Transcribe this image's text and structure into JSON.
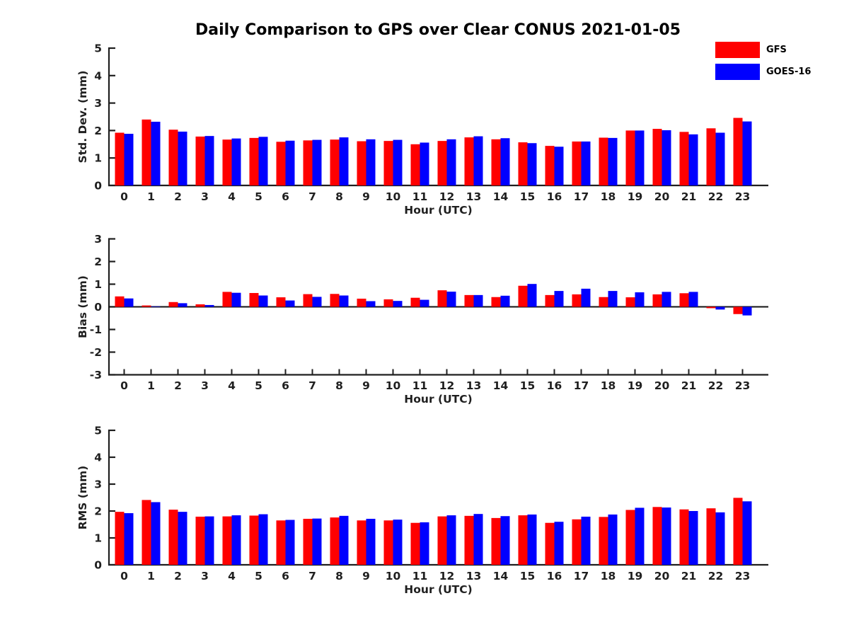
{
  "title": "Daily Comparison to GPS over Clear CONUS 2021-01-05",
  "legend": {
    "items": [
      {
        "label": "GFS",
        "color": "#ff0000"
      },
      {
        "label": "GOES-16",
        "color": "#0000ff"
      }
    ]
  },
  "colors": {
    "gfs": "#ff0000",
    "goes16": "#0000ff",
    "axis": "#1f1f1f",
    "background": "#ffffff"
  },
  "chart_data": [
    {
      "type": "bar",
      "title": "",
      "xlabel": "Hour (UTC)",
      "ylabel": "Std. Dev. (mm)",
      "ylim": [
        0,
        5
      ],
      "yticks": [
        0,
        1,
        2,
        3,
        4,
        5
      ],
      "grid": false,
      "legend_position": "top-right",
      "categories": [
        "0",
        "1",
        "2",
        "3",
        "4",
        "5",
        "6",
        "7",
        "8",
        "9",
        "10",
        "11",
        "12",
        "13",
        "14",
        "15",
        "16",
        "17",
        "18",
        "19",
        "20",
        "21",
        "22",
        "23"
      ],
      "series": [
        {
          "name": "GFS",
          "color": "#ff0000",
          "values": [
            1.92,
            2.4,
            2.03,
            1.78,
            1.67,
            1.73,
            1.59,
            1.64,
            1.67,
            1.61,
            1.62,
            1.5,
            1.62,
            1.75,
            1.68,
            1.57,
            1.44,
            1.6,
            1.74,
            2.0,
            2.06,
            1.95,
            2.08,
            2.46
          ]
        },
        {
          "name": "GOES-16",
          "color": "#0000ff",
          "values": [
            1.88,
            2.32,
            1.96,
            1.8,
            1.71,
            1.77,
            1.63,
            1.66,
            1.75,
            1.68,
            1.66,
            1.56,
            1.68,
            1.79,
            1.72,
            1.54,
            1.41,
            1.6,
            1.73,
            2.0,
            2.01,
            1.86,
            1.92,
            2.33
          ]
        }
      ]
    },
    {
      "type": "bar",
      "title": "",
      "xlabel": "Hour (UTC)",
      "ylabel": "Bias (mm)",
      "ylim": [
        -3,
        3
      ],
      "yticks": [
        -3,
        -2,
        -1,
        0,
        1,
        2,
        3
      ],
      "grid": false,
      "zero_line": true,
      "categories": [
        "0",
        "1",
        "2",
        "3",
        "4",
        "5",
        "6",
        "7",
        "8",
        "9",
        "10",
        "11",
        "12",
        "13",
        "14",
        "15",
        "16",
        "17",
        "18",
        "19",
        "20",
        "21",
        "22",
        "23"
      ],
      "series": [
        {
          "name": "GFS",
          "color": "#ff0000",
          "values": [
            0.46,
            0.06,
            0.21,
            0.11,
            0.66,
            0.61,
            0.42,
            0.56,
            0.57,
            0.36,
            0.33,
            0.4,
            0.73,
            0.52,
            0.43,
            0.93,
            0.52,
            0.55,
            0.43,
            0.42,
            0.55,
            0.6,
            -0.06,
            -0.32
          ]
        },
        {
          "name": "GOES-16",
          "color": "#0000ff",
          "values": [
            0.37,
            0.02,
            0.16,
            0.08,
            0.62,
            0.5,
            0.28,
            0.44,
            0.5,
            0.25,
            0.26,
            0.31,
            0.67,
            0.52,
            0.49,
            1.01,
            0.7,
            0.8,
            0.7,
            0.64,
            0.66,
            0.66,
            -0.12,
            -0.38
          ]
        }
      ]
    },
    {
      "type": "bar",
      "title": "",
      "xlabel": "Hour (UTC)",
      "ylabel": "RMS (mm)",
      "ylim": [
        0,
        5
      ],
      "yticks": [
        0,
        1,
        2,
        3,
        4,
        5
      ],
      "grid": false,
      "categories": [
        "0",
        "1",
        "2",
        "3",
        "4",
        "5",
        "6",
        "7",
        "8",
        "9",
        "10",
        "11",
        "12",
        "13",
        "14",
        "15",
        "16",
        "17",
        "18",
        "19",
        "20",
        "21",
        "22",
        "23"
      ],
      "series": [
        {
          "name": "GFS",
          "color": "#ff0000",
          "values": [
            1.97,
            2.41,
            2.05,
            1.79,
            1.8,
            1.83,
            1.65,
            1.71,
            1.76,
            1.65,
            1.65,
            1.56,
            1.8,
            1.82,
            1.74,
            1.84,
            1.56,
            1.69,
            1.78,
            2.04,
            2.15,
            2.06,
            2.1,
            2.49
          ]
        },
        {
          "name": "GOES-16",
          "color": "#0000ff",
          "values": [
            1.92,
            2.33,
            1.97,
            1.8,
            1.84,
            1.88,
            1.67,
            1.72,
            1.82,
            1.71,
            1.68,
            1.58,
            1.84,
            1.89,
            1.81,
            1.87,
            1.6,
            1.79,
            1.87,
            2.12,
            2.13,
            2.0,
            1.95,
            2.36
          ]
        }
      ]
    }
  ]
}
